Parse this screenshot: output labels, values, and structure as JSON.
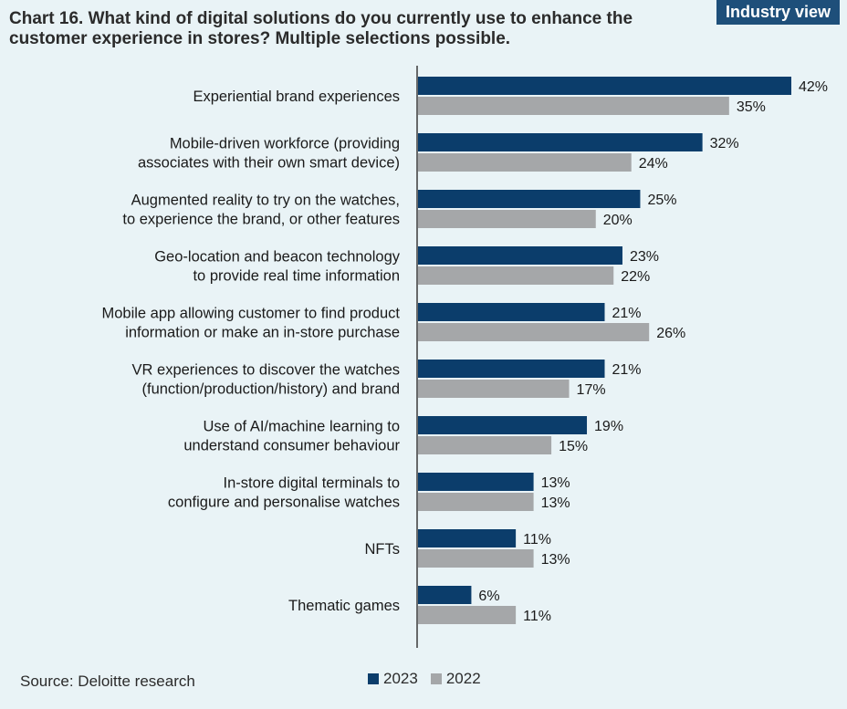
{
  "badge": "Industry view",
  "source": "Source: Deloitte research",
  "chart_data": {
    "type": "bar",
    "orientation": "horizontal",
    "title": "Chart 16. What kind of digital solutions do you currently use to enhance the customer experience in stores? Multiple selections possible.",
    "categories": [
      [
        "Experiential brand experiences"
      ],
      [
        "Mobile-driven workforce (providing",
        "associates with their own smart device)"
      ],
      [
        "Augmented reality to try on the watches,",
        "to experience the brand, or other features"
      ],
      [
        "Geo-location and beacon technology",
        "to provide real time information"
      ],
      [
        "Mobile app allowing customer to find product",
        "information or make an in-store purchase"
      ],
      [
        "VR experiences to discover the watches",
        "(function/production/history) and brand"
      ],
      [
        "Use of AI/machine learning to",
        "understand consumer behaviour"
      ],
      [
        "In-store digital terminals to",
        "configure and personalise watches"
      ],
      [
        "NFTs"
      ],
      [
        "Thematic games"
      ]
    ],
    "series": [
      {
        "name": "2023",
        "color": "#0b3d6b",
        "values": [
          42,
          32,
          25,
          23,
          21,
          21,
          19,
          13,
          11,
          6
        ]
      },
      {
        "name": "2022",
        "color": "#a5a7a9",
        "values": [
          35,
          24,
          20,
          22,
          26,
          17,
          15,
          13,
          13,
          11
        ]
      }
    ],
    "value_suffix": "%",
    "xlim": [
      0,
      42
    ],
    "grid": false,
    "legend_position": "bottom"
  }
}
